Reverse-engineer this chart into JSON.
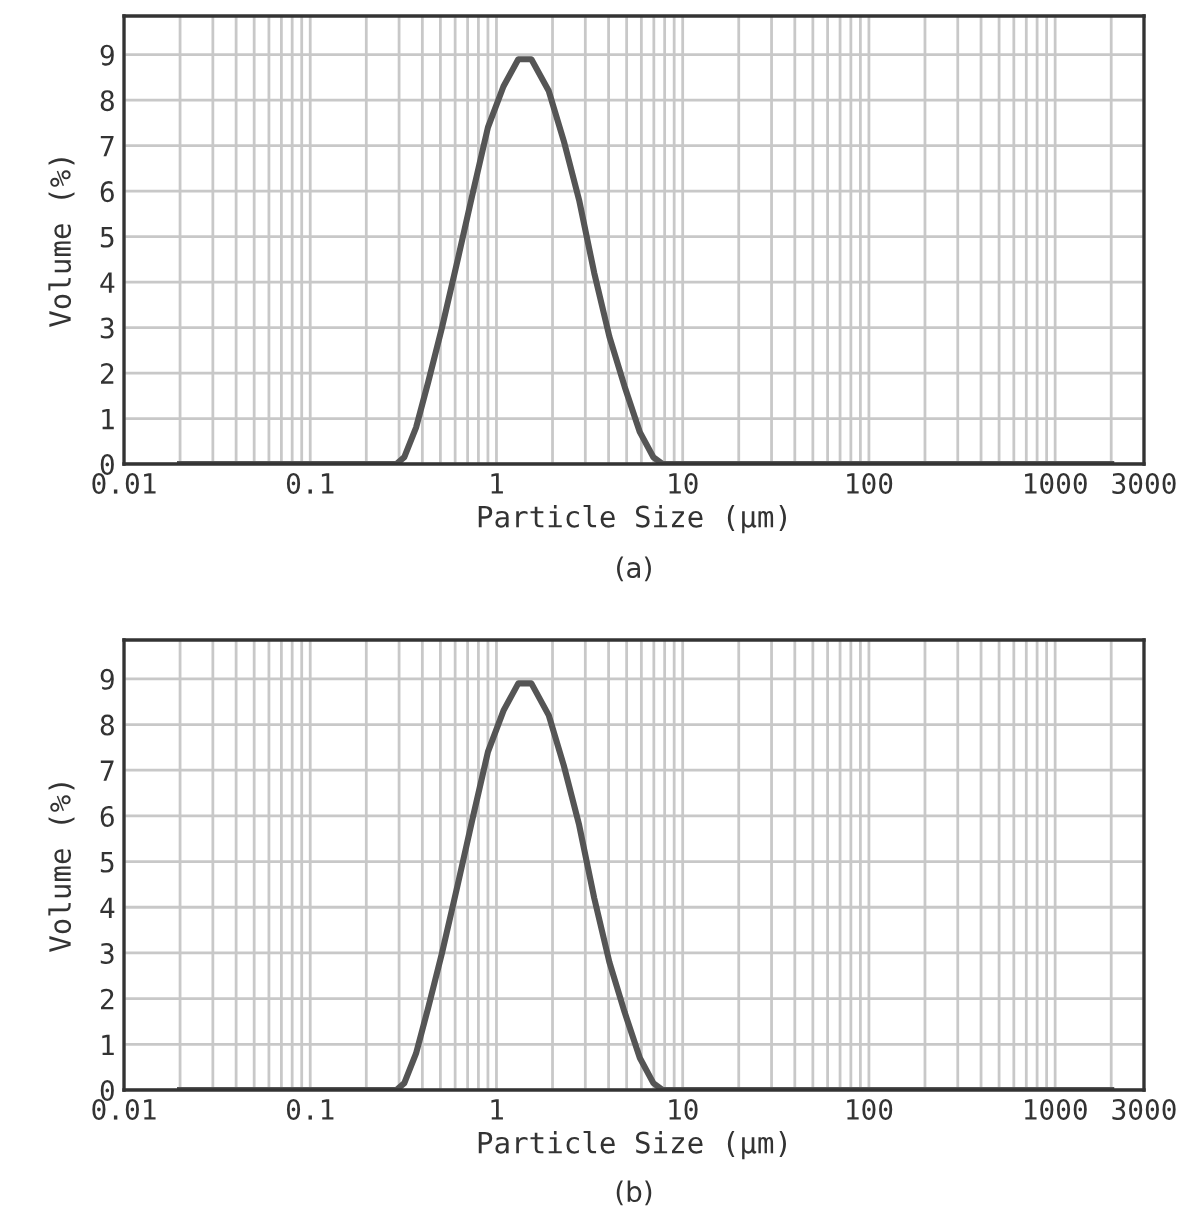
{
  "chart_data": [
    {
      "type": "line",
      "xlabel": "Particle Size (μm)",
      "ylabel": "Volume (%)",
      "log": "x",
      "grid": true,
      "annotations": [
        "(a)"
      ],
      "xlim": [
        0.01,
        3000
      ],
      "ylim": [
        0,
        9.85
      ],
      "xticks": [
        0.01,
        {
          "value": 0.02,
          "label": null
        },
        {
          "value": 0.03,
          "label": null
        },
        {
          "value": 0.04,
          "label": null
        },
        {
          "value": 0.05,
          "label": null
        },
        {
          "value": 0.06,
          "label": null
        },
        {
          "value": 0.07,
          "label": null
        },
        {
          "value": 0.08,
          "label": null
        },
        {
          "value": 0.09,
          "label": null
        },
        0.1,
        {
          "value": 0.2,
          "label": null
        },
        {
          "value": 0.3,
          "label": null
        },
        {
          "value": 0.4,
          "label": null
        },
        {
          "value": 0.5,
          "label": null
        },
        {
          "value": 0.6,
          "label": null
        },
        {
          "value": 0.7,
          "label": null
        },
        {
          "value": 0.8,
          "label": null
        },
        {
          "value": 0.9,
          "label": null
        },
        1,
        {
          "value": 2,
          "label": null
        },
        {
          "value": 3,
          "label": null
        },
        {
          "value": 4,
          "label": null
        },
        {
          "value": 5,
          "label": null
        },
        {
          "value": 6,
          "label": null
        },
        {
          "value": 7,
          "label": null
        },
        {
          "value": 8,
          "label": null
        },
        {
          "value": 9,
          "label": null
        },
        10,
        {
          "value": 20,
          "label": null
        },
        {
          "value": 30,
          "label": null
        },
        {
          "value": 40,
          "label": null
        },
        {
          "value": 50,
          "label": null
        },
        {
          "value": 60,
          "label": null
        },
        {
          "value": 70,
          "label": null
        },
        {
          "value": 80,
          "label": null
        },
        {
          "value": 90,
          "label": null
        },
        100,
        {
          "value": 200,
          "label": null
        },
        {
          "value": 300,
          "label": null
        },
        {
          "value": 400,
          "label": null
        },
        {
          "value": 500,
          "label": null
        },
        {
          "value": 600,
          "label": null
        },
        {
          "value": 700,
          "label": null
        },
        {
          "value": 800,
          "label": null
        },
        {
          "value": 900,
          "label": null
        },
        1000,
        {
          "value": 2000,
          "label": null
        },
        3000
      ],
      "yticks": [
        0,
        1,
        2,
        3,
        4,
        5,
        6,
        7,
        8,
        9
      ],
      "series": [
        {
          "color": "#555555",
          "x": [
            0.02,
            0.29,
            0.32,
            0.37,
            0.43,
            0.51,
            0.62,
            0.75,
            0.9,
            1.09,
            1.31,
            1.54,
            1.91,
            2.3,
            2.78,
            3.35,
            4.04,
            4.88,
            5.89,
            6.96,
            7.8,
            2000
          ],
          "values": [
            0,
            0,
            0.15,
            0.8,
            1.8,
            3.0,
            4.5,
            6.0,
            7.4,
            8.3,
            8.9,
            8.9,
            8.2,
            7.1,
            5.8,
            4.2,
            2.8,
            1.7,
            0.7,
            0.15,
            0,
            0
          ]
        }
      ]
    },
    {
      "type": "line",
      "xlabel": "Particle Size (μm)",
      "ylabel": "Volume (%)",
      "log": "x",
      "grid": true,
      "annotations": [
        "(b)"
      ],
      "xlim": [
        0.01,
        3000
      ],
      "ylim": [
        0,
        9.85
      ],
      "xticks": [
        0.01,
        {
          "value": 0.02,
          "label": null
        },
        {
          "value": 0.03,
          "label": null
        },
        {
          "value": 0.04,
          "label": null
        },
        {
          "value": 0.05,
          "label": null
        },
        {
          "value": 0.06,
          "label": null
        },
        {
          "value": 0.07,
          "label": null
        },
        {
          "value": 0.08,
          "label": null
        },
        {
          "value": 0.09,
          "label": null
        },
        0.1,
        {
          "value": 0.2,
          "label": null
        },
        {
          "value": 0.3,
          "label": null
        },
        {
          "value": 0.4,
          "label": null
        },
        {
          "value": 0.5,
          "label": null
        },
        {
          "value": 0.6,
          "label": null
        },
        {
          "value": 0.7,
          "label": null
        },
        {
          "value": 0.8,
          "label": null
        },
        {
          "value": 0.9,
          "label": null
        },
        1,
        {
          "value": 2,
          "label": null
        },
        {
          "value": 3,
          "label": null
        },
        {
          "value": 4,
          "label": null
        },
        {
          "value": 5,
          "label": null
        },
        {
          "value": 6,
          "label": null
        },
        {
          "value": 7,
          "label": null
        },
        {
          "value": 8,
          "label": null
        },
        {
          "value": 9,
          "label": null
        },
        10,
        {
          "value": 20,
          "label": null
        },
        {
          "value": 30,
          "label": null
        },
        {
          "value": 40,
          "label": null
        },
        {
          "value": 50,
          "label": null
        },
        {
          "value": 60,
          "label": null
        },
        {
          "value": 70,
          "label": null
        },
        {
          "value": 80,
          "label": null
        },
        {
          "value": 90,
          "label": null
        },
        100,
        {
          "value": 200,
          "label": null
        },
        {
          "value": 300,
          "label": null
        },
        {
          "value": 400,
          "label": null
        },
        {
          "value": 500,
          "label": null
        },
        {
          "value": 600,
          "label": null
        },
        {
          "value": 700,
          "label": null
        },
        {
          "value": 800,
          "label": null
        },
        {
          "value": 900,
          "label": null
        },
        1000,
        {
          "value": 2000,
          "label": null
        },
        3000
      ],
      "yticks": [
        0,
        1,
        2,
        3,
        4,
        5,
        6,
        7,
        8,
        9
      ],
      "series": [
        {
          "color": "#555555",
          "x": [
            0.02,
            0.29,
            0.32,
            0.37,
            0.43,
            0.51,
            0.62,
            0.75,
            0.9,
            1.09,
            1.31,
            1.54,
            1.91,
            2.3,
            2.78,
            3.35,
            4.04,
            4.88,
            5.89,
            6.96,
            7.8,
            2000
          ],
          "values": [
            0,
            0,
            0.15,
            0.8,
            1.8,
            3.0,
            4.5,
            6.0,
            7.4,
            8.3,
            8.9,
            8.9,
            8.2,
            7.1,
            5.8,
            4.2,
            2.8,
            1.7,
            0.7,
            0.15,
            0,
            0
          ]
        }
      ]
    }
  ]
}
